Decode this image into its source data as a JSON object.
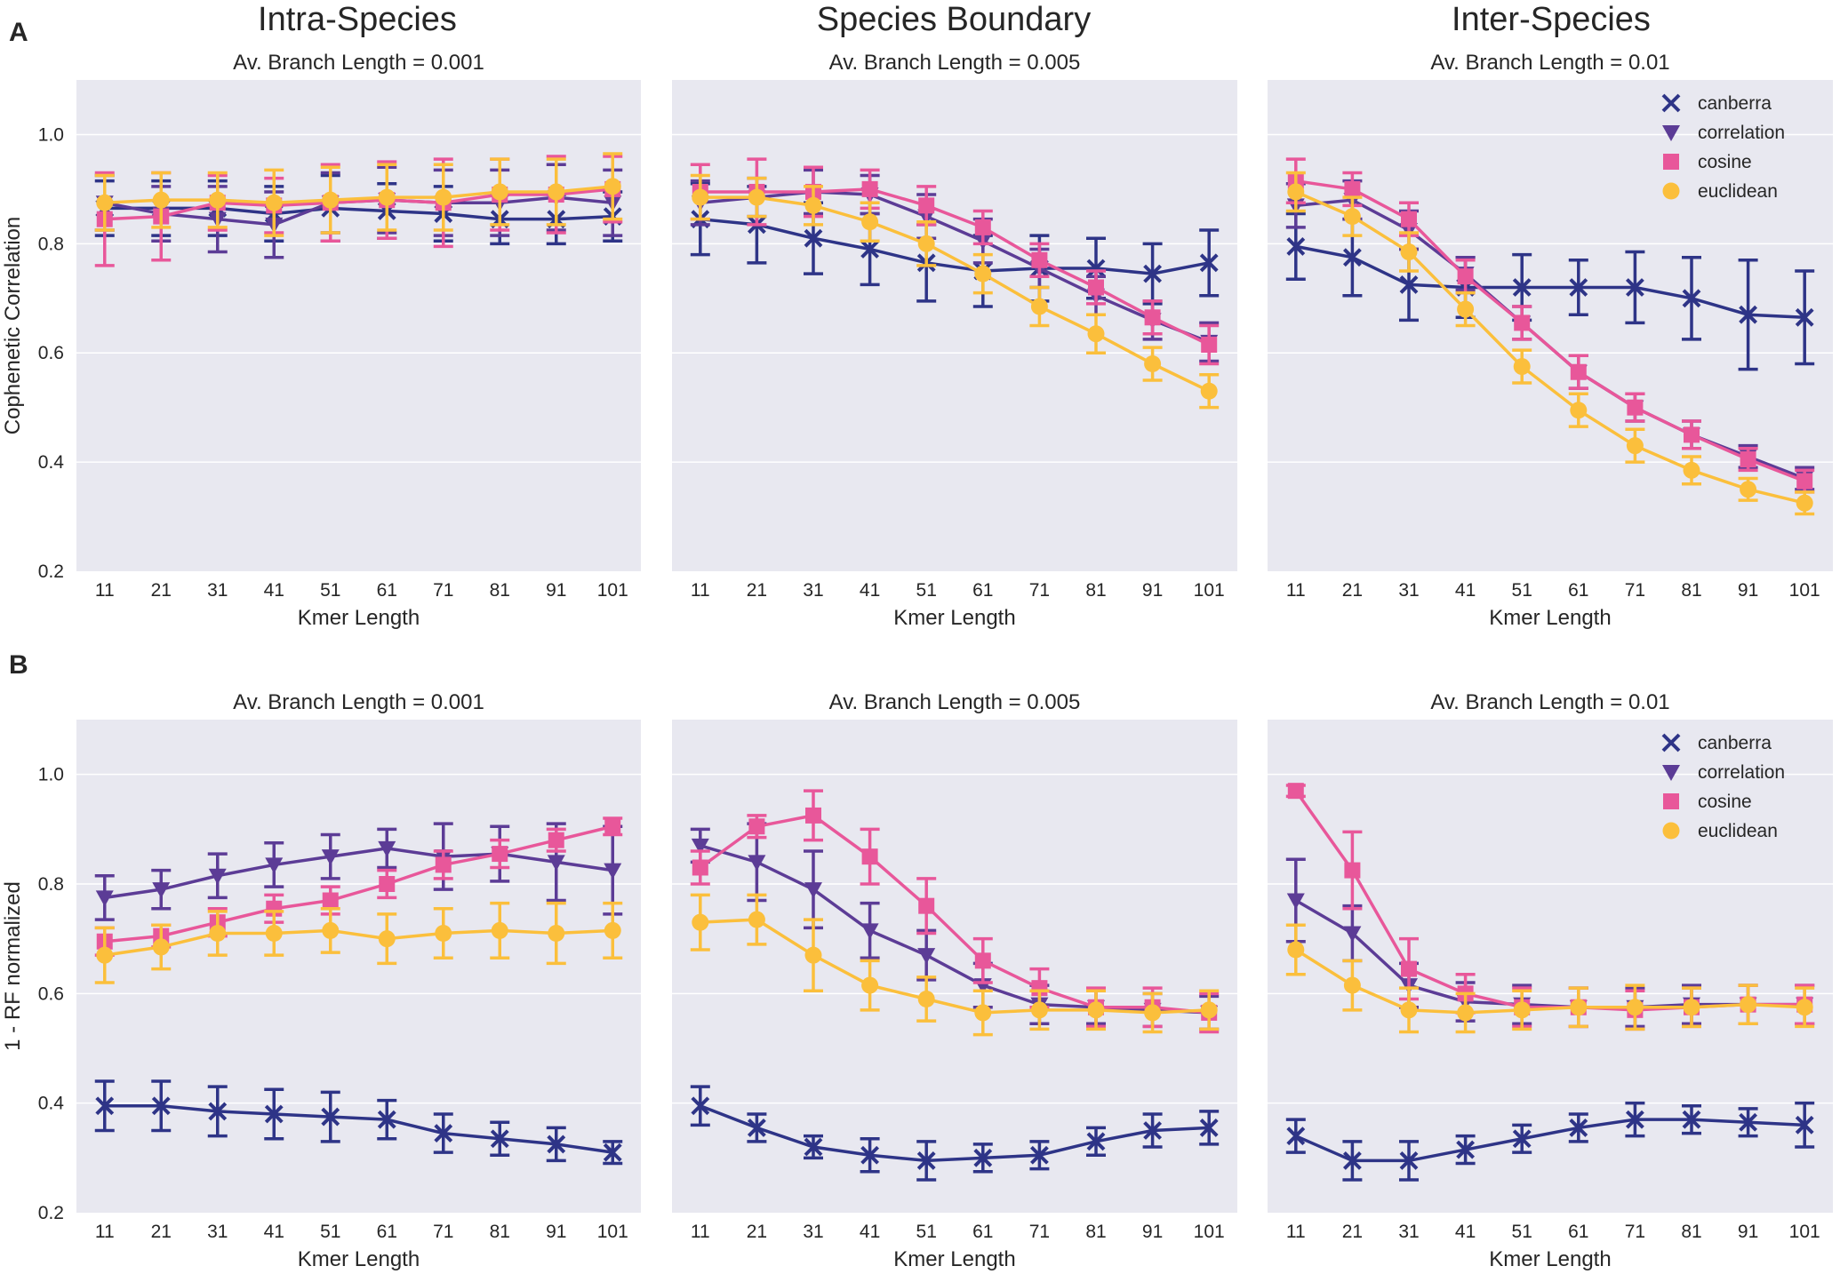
{
  "panels": {
    "A": {
      "label": "A"
    },
    "B": {
      "label": "B"
    }
  },
  "column_titles": [
    "Intra-Species",
    "Species Boundary",
    "Inter-Species"
  ],
  "colors": {
    "canberra": "#2e3487",
    "correlation": "#5c3c96",
    "cosine": "#e8579a",
    "euclidean": "#fbbf3c",
    "plot_bg": "#e8e8f0",
    "grid": "#ffffff"
  },
  "legend_labels": [
    "canberra",
    "correlation",
    "cosine",
    "euclidean"
  ],
  "chart_data": [
    {
      "type": "line",
      "panel": "A",
      "title": "Av. Branch Length   = 0.001",
      "xlabel": "Kmer Length",
      "ylabel": "Cophenetic Correlation",
      "x": [
        11,
        21,
        31,
        41,
        51,
        61,
        71,
        81,
        91,
        101
      ],
      "ylim": [
        0.2,
        1.1
      ],
      "yticks": [
        0.2,
        0.4,
        0.6,
        0.8,
        1.0
      ],
      "legend": null,
      "grid": true,
      "series": [
        {
          "name": "canberra",
          "marker": "x",
          "values": [
            0.865,
            0.865,
            0.865,
            0.855,
            0.865,
            0.86,
            0.855,
            0.845,
            0.845,
            0.85
          ],
          "errors": [
            0.05,
            0.05,
            0.05,
            0.05,
            0.06,
            0.05,
            0.05,
            0.045,
            0.045,
            0.045
          ]
        },
        {
          "name": "correlation",
          "marker": "v",
          "values": [
            0.875,
            0.855,
            0.845,
            0.835,
            0.875,
            0.88,
            0.875,
            0.875,
            0.885,
            0.875
          ],
          "errors": [
            0.05,
            0.05,
            0.06,
            0.06,
            0.055,
            0.06,
            0.06,
            0.06,
            0.06,
            0.06
          ]
        },
        {
          "name": "cosine",
          "marker": "s",
          "values": [
            0.845,
            0.85,
            0.875,
            0.87,
            0.875,
            0.88,
            0.875,
            0.89,
            0.89,
            0.9
          ],
          "errors": [
            0.085,
            0.08,
            0.05,
            0.05,
            0.07,
            0.07,
            0.08,
            0.065,
            0.07,
            0.06
          ]
        },
        {
          "name": "euclidean",
          "marker": "o",
          "values": [
            0.875,
            0.88,
            0.88,
            0.875,
            0.88,
            0.885,
            0.885,
            0.895,
            0.895,
            0.905
          ],
          "errors": [
            0.05,
            0.05,
            0.05,
            0.06,
            0.06,
            0.06,
            0.06,
            0.06,
            0.06,
            0.06
          ]
        }
      ]
    },
    {
      "type": "line",
      "panel": "A",
      "title": "Av. Branch Length   = 0.005",
      "xlabel": "Kmer Length",
      "ylabel": "",
      "x": [
        11,
        21,
        31,
        41,
        51,
        61,
        71,
        81,
        91,
        101
      ],
      "ylim": [
        0.2,
        1.1
      ],
      "yticks": [
        0.2,
        0.4,
        0.6,
        0.8,
        1.0
      ],
      "legend": null,
      "grid": true,
      "series": [
        {
          "name": "canberra",
          "marker": "x",
          "values": [
            0.845,
            0.835,
            0.81,
            0.79,
            0.765,
            0.75,
            0.755,
            0.755,
            0.745,
            0.765
          ],
          "errors": [
            0.065,
            0.07,
            0.065,
            0.065,
            0.07,
            0.065,
            0.06,
            0.055,
            0.055,
            0.06
          ]
        },
        {
          "name": "correlation",
          "marker": "v",
          "values": [
            0.875,
            0.885,
            0.895,
            0.89,
            0.85,
            0.805,
            0.755,
            0.705,
            0.66,
            0.62
          ],
          "errors": [
            0.04,
            0.035,
            0.04,
            0.035,
            0.04,
            0.04,
            0.035,
            0.035,
            0.035,
            0.035
          ]
        },
        {
          "name": "cosine",
          "marker": "s",
          "values": [
            0.895,
            0.895,
            0.895,
            0.9,
            0.87,
            0.83,
            0.77,
            0.72,
            0.665,
            0.615
          ],
          "errors": [
            0.05,
            0.06,
            0.045,
            0.035,
            0.035,
            0.03,
            0.03,
            0.03,
            0.03,
            0.035
          ]
        },
        {
          "name": "euclidean",
          "marker": "o",
          "values": [
            0.885,
            0.885,
            0.87,
            0.84,
            0.8,
            0.745,
            0.685,
            0.635,
            0.58,
            0.53
          ],
          "errors": [
            0.04,
            0.035,
            0.035,
            0.035,
            0.04,
            0.035,
            0.035,
            0.035,
            0.03,
            0.03
          ]
        }
      ]
    },
    {
      "type": "line",
      "panel": "A",
      "title": "Av. Branch Length   = 0.01",
      "xlabel": "Kmer Length",
      "ylabel": "",
      "x": [
        11,
        21,
        31,
        41,
        51,
        61,
        71,
        81,
        91,
        101
      ],
      "ylim": [
        0.2,
        1.1
      ],
      "yticks": [
        0.2,
        0.4,
        0.6,
        0.8,
        1.0
      ],
      "legend": "top-right",
      "grid": true,
      "series": [
        {
          "name": "canberra",
          "marker": "x",
          "values": [
            0.795,
            0.775,
            0.725,
            0.72,
            0.72,
            0.72,
            0.72,
            0.7,
            0.67,
            0.665
          ],
          "errors": [
            0.06,
            0.07,
            0.065,
            0.055,
            0.06,
            0.05,
            0.065,
            0.075,
            0.1,
            0.085
          ]
        },
        {
          "name": "correlation",
          "marker": "v",
          "values": [
            0.87,
            0.88,
            0.825,
            0.745,
            0.655,
            0.565,
            0.5,
            0.45,
            0.41,
            0.37
          ],
          "errors": [
            0.04,
            0.035,
            0.035,
            0.03,
            0.03,
            0.03,
            0.025,
            0.025,
            0.02,
            0.02
          ]
        },
        {
          "name": "cosine",
          "marker": "s",
          "values": [
            0.915,
            0.9,
            0.845,
            0.74,
            0.655,
            0.565,
            0.5,
            0.45,
            0.405,
            0.365
          ],
          "errors": [
            0.04,
            0.03,
            0.03,
            0.03,
            0.03,
            0.03,
            0.025,
            0.025,
            0.02,
            0.02
          ]
        },
        {
          "name": "euclidean",
          "marker": "o",
          "values": [
            0.895,
            0.85,
            0.785,
            0.68,
            0.575,
            0.495,
            0.43,
            0.385,
            0.35,
            0.325
          ],
          "errors": [
            0.035,
            0.035,
            0.035,
            0.03,
            0.03,
            0.03,
            0.03,
            0.025,
            0.02,
            0.02
          ]
        }
      ]
    },
    {
      "type": "line",
      "panel": "B",
      "title": "Av. Branch Length   = 0.001",
      "xlabel": "Kmer Length",
      "ylabel": "1 - RF normalized",
      "x": [
        11,
        21,
        31,
        41,
        51,
        61,
        71,
        81,
        91,
        101
      ],
      "ylim": [
        0.2,
        1.1
      ],
      "yticks": [
        0.2,
        0.4,
        0.6,
        0.8,
        1.0
      ],
      "legend": null,
      "grid": true,
      "series": [
        {
          "name": "canberra",
          "marker": "x",
          "values": [
            0.395,
            0.395,
            0.385,
            0.38,
            0.375,
            0.37,
            0.345,
            0.335,
            0.325,
            0.31
          ],
          "errors": [
            0.045,
            0.045,
            0.045,
            0.045,
            0.045,
            0.035,
            0.035,
            0.03,
            0.03,
            0.02
          ]
        },
        {
          "name": "correlation",
          "marker": "v",
          "values": [
            0.775,
            0.79,
            0.815,
            0.835,
            0.85,
            0.865,
            0.85,
            0.855,
            0.84,
            0.825
          ],
          "errors": [
            0.04,
            0.035,
            0.04,
            0.04,
            0.04,
            0.035,
            0.06,
            0.05,
            0.07,
            0.08
          ]
        },
        {
          "name": "cosine",
          "marker": "s",
          "values": [
            0.695,
            0.705,
            0.73,
            0.755,
            0.77,
            0.8,
            0.835,
            0.855,
            0.88,
            0.905
          ],
          "errors": [
            0.025,
            0.02,
            0.025,
            0.025,
            0.025,
            0.025,
            0.025,
            0.025,
            0.02,
            0.015
          ]
        },
        {
          "name": "euclidean",
          "marker": "o",
          "values": [
            0.67,
            0.685,
            0.71,
            0.71,
            0.715,
            0.7,
            0.71,
            0.715,
            0.71,
            0.715
          ],
          "errors": [
            0.05,
            0.04,
            0.04,
            0.04,
            0.04,
            0.045,
            0.045,
            0.05,
            0.055,
            0.05
          ]
        }
      ]
    },
    {
      "type": "line",
      "panel": "B",
      "title": "Av. Branch Length   = 0.005",
      "xlabel": "Kmer Length",
      "ylabel": "",
      "x": [
        11,
        21,
        31,
        41,
        51,
        61,
        71,
        81,
        91,
        101
      ],
      "ylim": [
        0.2,
        1.1
      ],
      "yticks": [
        0.2,
        0.4,
        0.6,
        0.8,
        1.0
      ],
      "legend": null,
      "grid": true,
      "series": [
        {
          "name": "canberra",
          "marker": "x",
          "values": [
            0.395,
            0.355,
            0.32,
            0.305,
            0.295,
            0.3,
            0.305,
            0.33,
            0.35,
            0.355
          ],
          "errors": [
            0.035,
            0.025,
            0.02,
            0.03,
            0.035,
            0.025,
            0.025,
            0.025,
            0.03,
            0.03
          ]
        },
        {
          "name": "correlation",
          "marker": "v",
          "values": [
            0.87,
            0.84,
            0.79,
            0.715,
            0.67,
            0.615,
            0.58,
            0.575,
            0.57,
            0.565
          ],
          "errors": [
            0.03,
            0.07,
            0.07,
            0.05,
            0.045,
            0.04,
            0.035,
            0.03,
            0.03,
            0.03
          ]
        },
        {
          "name": "cosine",
          "marker": "s",
          "values": [
            0.83,
            0.905,
            0.925,
            0.85,
            0.76,
            0.66,
            0.61,
            0.575,
            0.575,
            0.565
          ],
          "errors": [
            0.03,
            0.02,
            0.045,
            0.05,
            0.05,
            0.04,
            0.035,
            0.035,
            0.035,
            0.035
          ]
        },
        {
          "name": "euclidean",
          "marker": "o",
          "values": [
            0.73,
            0.735,
            0.67,
            0.615,
            0.59,
            0.565,
            0.57,
            0.57,
            0.565,
            0.57
          ],
          "errors": [
            0.05,
            0.045,
            0.065,
            0.045,
            0.04,
            0.04,
            0.035,
            0.035,
            0.035,
            0.035
          ]
        }
      ]
    },
    {
      "type": "line",
      "panel": "B",
      "title": "Av. Branch Length   = 0.01",
      "xlabel": "Kmer Length",
      "ylabel": "",
      "x": [
        11,
        21,
        31,
        41,
        51,
        61,
        71,
        81,
        91,
        101
      ],
      "ylim": [
        0.2,
        1.1
      ],
      "yticks": [
        0.2,
        0.4,
        0.6,
        0.8,
        1.0
      ],
      "legend": "top-right",
      "grid": true,
      "series": [
        {
          "name": "canberra",
          "marker": "x",
          "values": [
            0.34,
            0.295,
            0.295,
            0.315,
            0.335,
            0.355,
            0.37,
            0.37,
            0.365,
            0.36
          ],
          "errors": [
            0.03,
            0.035,
            0.035,
            0.025,
            0.025,
            0.025,
            0.03,
            0.025,
            0.025,
            0.04
          ]
        },
        {
          "name": "correlation",
          "marker": "v",
          "values": [
            0.77,
            0.71,
            0.615,
            0.585,
            0.58,
            0.575,
            0.575,
            0.58,
            0.58,
            0.58
          ],
          "errors": [
            0.075,
            0.05,
            0.04,
            0.035,
            0.035,
            0.035,
            0.035,
            0.035,
            0.035,
            0.035
          ]
        },
        {
          "name": "cosine",
          "marker": "s",
          "values": [
            0.97,
            0.825,
            0.645,
            0.6,
            0.575,
            0.575,
            0.57,
            0.575,
            0.58,
            0.58
          ],
          "errors": [
            0.01,
            0.07,
            0.055,
            0.035,
            0.035,
            0.035,
            0.035,
            0.035,
            0.035,
            0.035
          ]
        },
        {
          "name": "euclidean",
          "marker": "o",
          "values": [
            0.68,
            0.615,
            0.57,
            0.565,
            0.57,
            0.575,
            0.575,
            0.575,
            0.58,
            0.575
          ],
          "errors": [
            0.045,
            0.045,
            0.04,
            0.035,
            0.035,
            0.035,
            0.04,
            0.035,
            0.035,
            0.035
          ]
        }
      ]
    }
  ]
}
